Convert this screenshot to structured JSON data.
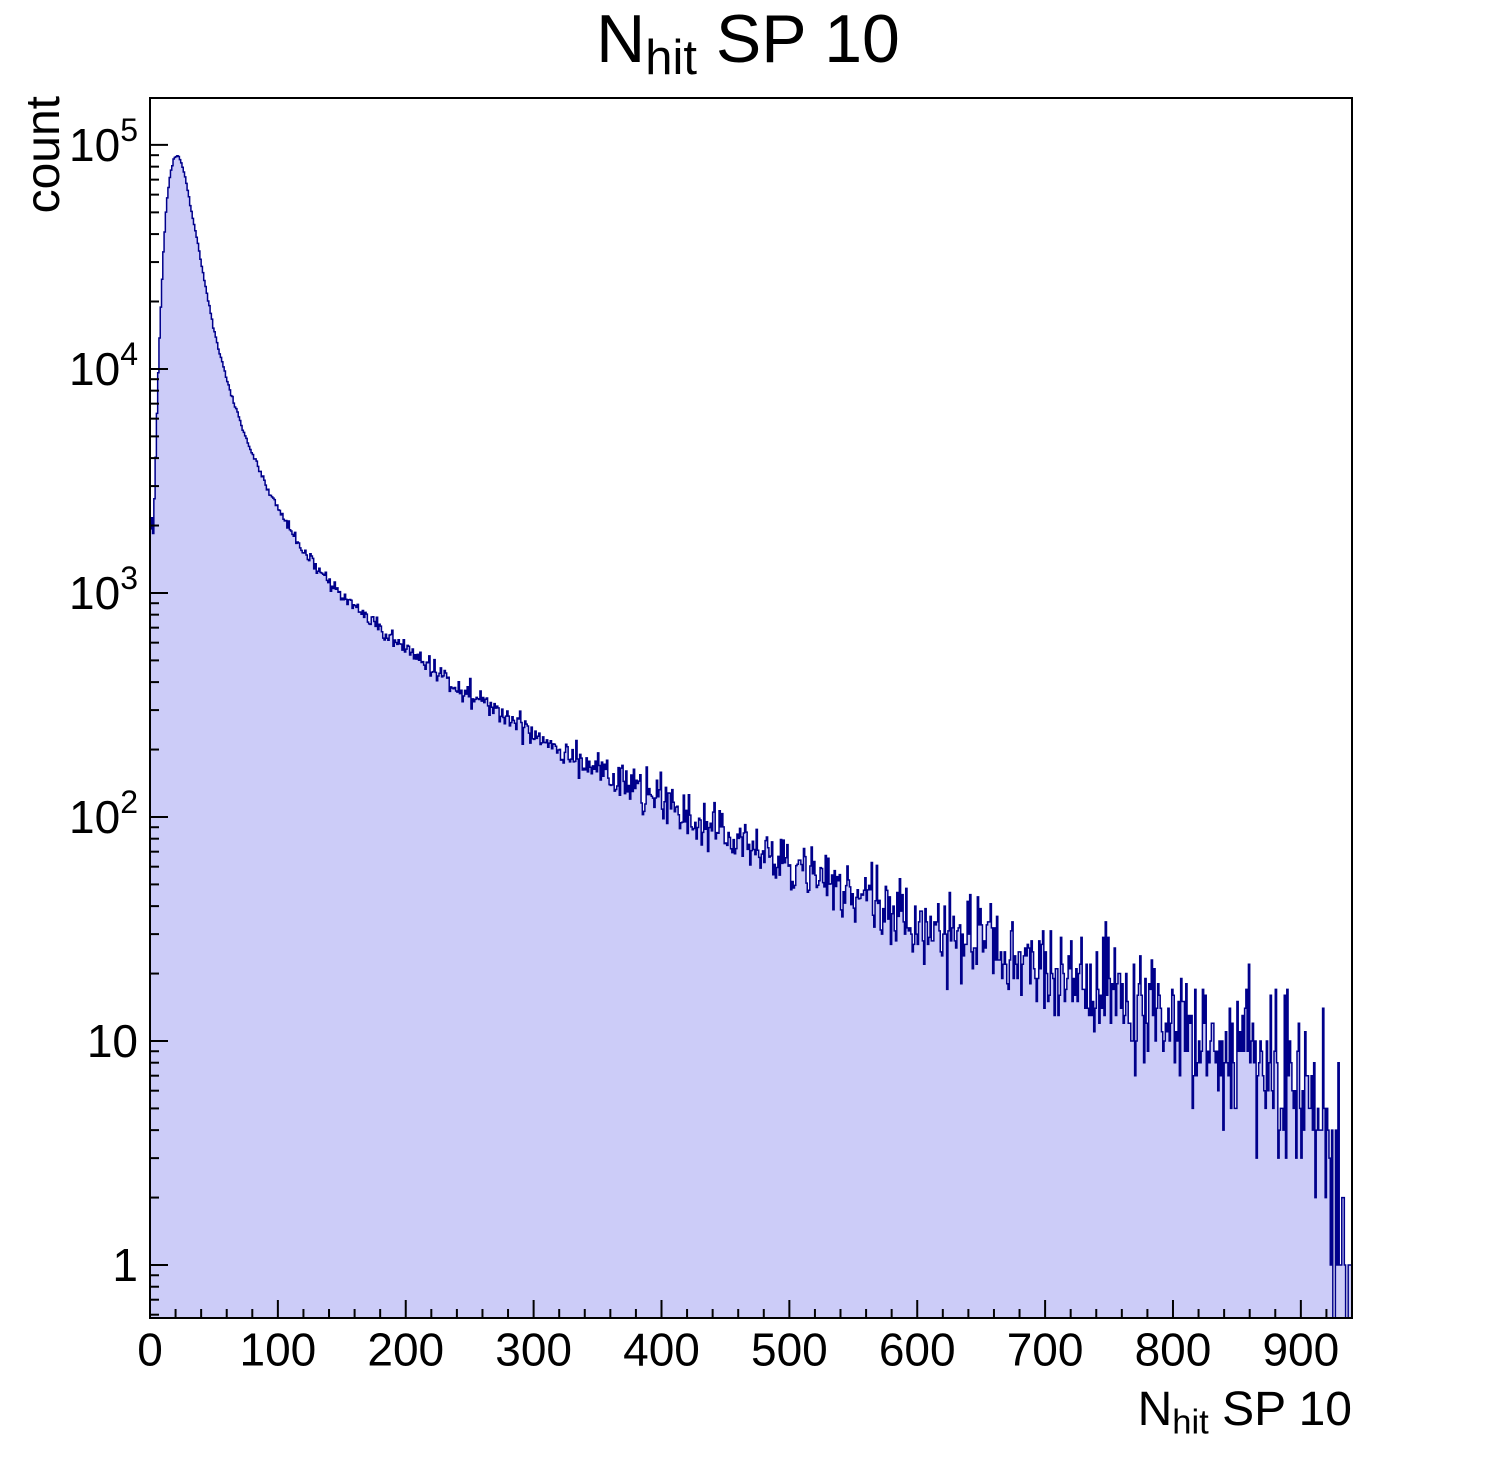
{
  "chart_data": {
    "type": "area",
    "style": "filled-step-histogram",
    "title": {
      "prefix": "N",
      "subscript": "hit",
      "suffix": " SP 10"
    },
    "legend": "none",
    "grid": false,
    "x_axis": {
      "label": {
        "prefix": "N",
        "subscript": "hit",
        "suffix": " SP 10"
      },
      "scale": "linear",
      "min": 0,
      "max": 940,
      "major_ticks": [
        0,
        100,
        200,
        300,
        400,
        500,
        600,
        700,
        800,
        900
      ],
      "minor_tick_interval": 20
    },
    "y_axis": {
      "label": "count",
      "scale": "log",
      "min": 0.58,
      "max": 162000,
      "major_ticks": [
        1,
        10,
        100,
        1000,
        10000,
        100000
      ]
    },
    "series": [
      {
        "name": "nhit-sp10-histogram",
        "fill_color": "#ccccf8",
        "line_color": "#00008b",
        "bin_width": 1,
        "x_data_max": 939,
        "peak": {
          "x": 21,
          "y": 90000
        },
        "profile": [
          [
            0,
            1400
          ],
          [
            1,
            2800
          ],
          [
            2,
            1700
          ],
          [
            3,
            2200
          ],
          [
            5,
            5000
          ],
          [
            7,
            12000
          ],
          [
            10,
            30000
          ],
          [
            13,
            55000
          ],
          [
            16,
            75000
          ],
          [
            19,
            88000
          ],
          [
            22,
            90000
          ],
          [
            25,
            82000
          ],
          [
            28,
            70000
          ],
          [
            32,
            52000
          ],
          [
            36,
            40000
          ],
          [
            40,
            30000
          ],
          [
            45,
            21000
          ],
          [
            50,
            15000
          ],
          [
            55,
            11500
          ],
          [
            60,
            9000
          ],
          [
            65,
            7200
          ],
          [
            70,
            5900
          ],
          [
            75,
            5000
          ],
          [
            80,
            4200
          ],
          [
            85,
            3600
          ],
          [
            90,
            3100
          ],
          [
            95,
            2700
          ],
          [
            100,
            2400
          ],
          [
            110,
            1900
          ],
          [
            120,
            1550
          ],
          [
            130,
            1300
          ],
          [
            140,
            1120
          ],
          [
            150,
            980
          ],
          [
            160,
            860
          ],
          [
            170,
            770
          ],
          [
            180,
            690
          ],
          [
            190,
            620
          ],
          [
            200,
            560
          ],
          [
            210,
            510
          ],
          [
            220,
            465
          ],
          [
            230,
            425
          ],
          [
            240,
            390
          ],
          [
            250,
            355
          ],
          [
            260,
            325
          ],
          [
            270,
            300
          ],
          [
            280,
            278
          ],
          [
            290,
            257
          ],
          [
            300,
            238
          ],
          [
            320,
            205
          ],
          [
            340,
            177
          ],
          [
            360,
            153
          ],
          [
            380,
            133
          ],
          [
            400,
            116
          ],
          [
            420,
            101
          ],
          [
            440,
            89
          ],
          [
            460,
            78
          ],
          [
            480,
            69
          ],
          [
            500,
            61
          ],
          [
            520,
            54
          ],
          [
            540,
            48
          ],
          [
            560,
            43
          ],
          [
            580,
            38
          ],
          [
            600,
            34
          ],
          [
            620,
            31
          ],
          [
            640,
            28
          ],
          [
            660,
            25
          ],
          [
            680,
            22
          ],
          [
            700,
            20
          ],
          [
            720,
            18
          ],
          [
            740,
            16
          ],
          [
            760,
            14.5
          ],
          [
            780,
            13
          ],
          [
            800,
            11.5
          ],
          [
            820,
            10.5
          ],
          [
            840,
            9.5
          ],
          [
            860,
            8.5
          ],
          [
            880,
            7.5
          ],
          [
            900,
            6
          ],
          [
            910,
            5
          ],
          [
            915,
            4
          ],
          [
            920,
            3
          ],
          [
            925,
            2
          ],
          [
            930,
            1.2
          ],
          [
            935,
            0.7
          ],
          [
            939,
            0.9
          ]
        ]
      }
    ],
    "noise": {
      "model": "poisson-log",
      "seed": 42,
      "rel_sigma_scale": 1.15
    },
    "frame_color": "#000000",
    "background_color": "#ffffff"
  }
}
